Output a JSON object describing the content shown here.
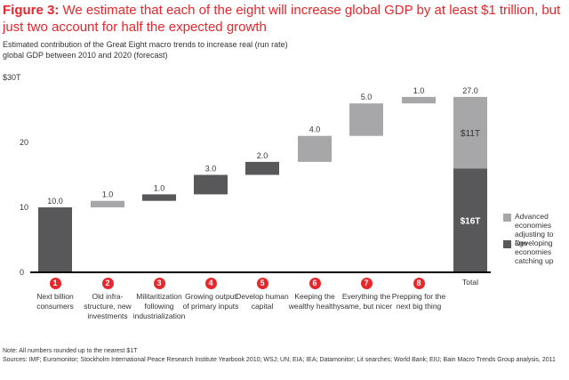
{
  "title": {
    "prefix": "Figure 3:",
    "text": " We estimate that each of the eight will increase global GDP by at least $1 trillion, but just two account for half the expected growth"
  },
  "subtitle": "Estimated contribution of the Great Eight macro trends to increase real (run rate) global GDP between 2010 and 2020 (forecast)",
  "colors": {
    "dark": "#58585a",
    "light": "#a7a7a9",
    "accent": "#e8262b",
    "axis": "#000000"
  },
  "chart_data": {
    "type": "bar",
    "subtype": "waterfall",
    "title": "Estimated contribution of the Great Eight macro trends to increase real (run rate) global GDP between 2010 and 2020 (forecast)",
    "ylabel": "",
    "ylim": [
      0,
      30
    ],
    "yticks": [
      0,
      10,
      20,
      30
    ],
    "ytick_labels": [
      "0",
      "10",
      "20",
      "$30T"
    ],
    "grid": false,
    "categories": [
      {
        "num": "1",
        "label": "Next billion consumers"
      },
      {
        "num": "2",
        "label": "Old infra-structure, new investments"
      },
      {
        "num": "3",
        "label": "Militaritization following industrialization"
      },
      {
        "num": "4",
        "label": "Growing output of primary inputs"
      },
      {
        "num": "5",
        "label": "Develop human capital"
      },
      {
        "num": "6",
        "label": "Keeping the wealthy healthy"
      },
      {
        "num": "7",
        "label": "Everything the same, but nicer"
      },
      {
        "num": "8",
        "label": "Prepping for the next big thing"
      },
      {
        "num": "",
        "label": "Total"
      }
    ],
    "values": [
      10.0,
      1.0,
      1.0,
      3.0,
      2.0,
      4.0,
      5.0,
      1.0,
      27.0
    ],
    "value_labels": [
      "10.0",
      "1.0",
      "1.0",
      "3.0",
      "2.0",
      "4.0",
      "5.0",
      "1.0",
      "27.0"
    ],
    "groups": [
      "developing",
      "advanced",
      "developing",
      "developing",
      "developing",
      "advanced",
      "advanced",
      "advanced",
      "total"
    ],
    "total_segments": [
      {
        "name": "Developing economies catching up",
        "value": 16,
        "label": "$16T"
      },
      {
        "name": "Advanced economies adjusting to age",
        "value": 11,
        "label": "$11T"
      }
    ],
    "legend": [
      {
        "name": "Advanced economies adjusting to age",
        "group": "advanced"
      },
      {
        "name": "Developing economies catching up",
        "group": "developing"
      }
    ],
    "legend_position": "right"
  },
  "notes": {
    "note": "Note: All numbers rounded up to the nearest $1T",
    "sources": "Sources: IMF; Euromonitor; Stockholm International Peace Research Institute Yearbook 2010; WSJ; UN; EIA; IEA; Datamonitor; Lit searches; World Bank; EIU; Bain Macro Trends Group analysis, 2011"
  }
}
